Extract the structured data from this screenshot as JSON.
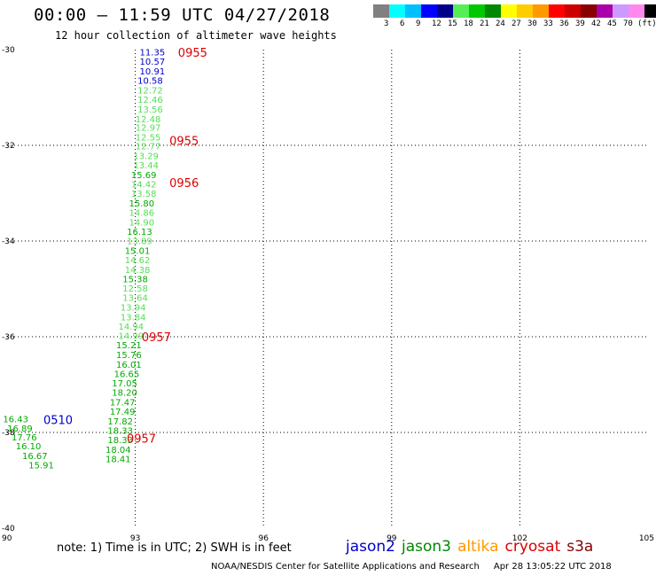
{
  "header": {
    "title": "00:00 – 11:59 UTC 04/27/2018",
    "subtitle": "12 hour collection of altimeter wave heights"
  },
  "legend": {
    "colors": [
      "#808080",
      "#00ffff",
      "#00bfff",
      "#0000ff",
      "#00008b",
      "#55ee55",
      "#00c800",
      "#008800",
      "#ffff00",
      "#ffcc00",
      "#ff9900",
      "#ff0000",
      "#cc0000",
      "#880000",
      "#aa00aa",
      "#cc99ff",
      "#ff88ee",
      "#000000"
    ],
    "labels": [
      "3",
      "6",
      "9",
      "12",
      "15",
      "18",
      "21",
      "24",
      "27",
      "30",
      "33",
      "36",
      "39",
      "42",
      "45",
      "70"
    ],
    "unit": "(ft)"
  },
  "axes": {
    "x_ticks": [
      "90",
      "93",
      "96",
      "99",
      "102",
      "105"
    ],
    "y_ticks": [
      "-30",
      "-32",
      "-34",
      "-36",
      "-38",
      "-40"
    ],
    "lon_range": [
      90,
      105
    ],
    "lat_range": [
      -40,
      -30
    ]
  },
  "chart_data": {
    "type": "scatter",
    "points": [
      {
        "lon": 93.4,
        "lat": -30.05,
        "label": "11.35",
        "color": "#0000cc"
      },
      {
        "lon": 93.4,
        "lat": -30.24,
        "label": "10.57",
        "color": "#0000cc"
      },
      {
        "lon": 93.4,
        "lat": -30.44,
        "label": "10.91",
        "color": "#0000cc"
      },
      {
        "lon": 93.35,
        "lat": -30.64,
        "label": "10.58",
        "color": "#0000cc"
      },
      {
        "lon": 93.35,
        "lat": -30.84,
        "label": "12.72",
        "color": "#55dd55"
      },
      {
        "lon": 93.35,
        "lat": -31.04,
        "label": "12.46",
        "color": "#55dd55"
      },
      {
        "lon": 93.35,
        "lat": -31.24,
        "label": "13.56",
        "color": "#55dd55"
      },
      {
        "lon": 93.3,
        "lat": -31.44,
        "label": "12.48",
        "color": "#55dd55"
      },
      {
        "lon": 93.3,
        "lat": -31.62,
        "label": "12.97",
        "color": "#55dd55"
      },
      {
        "lon": 93.3,
        "lat": -31.82,
        "label": "12.55",
        "color": "#55dd55"
      },
      {
        "lon": 93.3,
        "lat": -32.01,
        "label": "12.77",
        "color": "#55dd55"
      },
      {
        "lon": 93.25,
        "lat": -32.21,
        "label": "13.29",
        "color": "#55dd55"
      },
      {
        "lon": 93.25,
        "lat": -32.41,
        "label": "13.44",
        "color": "#55dd55"
      },
      {
        "lon": 93.2,
        "lat": -32.61,
        "label": "15.69",
        "color": "#00aa00"
      },
      {
        "lon": 93.2,
        "lat": -32.81,
        "label": "14.42",
        "color": "#55dd55"
      },
      {
        "lon": 93.2,
        "lat": -33.0,
        "label": "13.58",
        "color": "#55dd55"
      },
      {
        "lon": 93.15,
        "lat": -33.2,
        "label": "15.80",
        "color": "#00aa00"
      },
      {
        "lon": 93.15,
        "lat": -33.4,
        "label": "14.86",
        "color": "#55dd55"
      },
      {
        "lon": 93.15,
        "lat": -33.6,
        "label": "14.90",
        "color": "#55dd55"
      },
      {
        "lon": 93.1,
        "lat": -33.8,
        "label": "16.13",
        "color": "#00aa00"
      },
      {
        "lon": 93.1,
        "lat": -33.99,
        "label": "13.89",
        "color": "#55dd55"
      },
      {
        "lon": 93.05,
        "lat": -34.19,
        "label": "15.01",
        "color": "#00aa00"
      },
      {
        "lon": 93.05,
        "lat": -34.39,
        "label": "14.62",
        "color": "#55dd55"
      },
      {
        "lon": 93.05,
        "lat": -34.59,
        "label": "14.38",
        "color": "#55dd55"
      },
      {
        "lon": 93.0,
        "lat": -34.79,
        "label": "15.38",
        "color": "#00aa00"
      },
      {
        "lon": 93.0,
        "lat": -34.98,
        "label": "12.58",
        "color": "#55dd55"
      },
      {
        "lon": 93.0,
        "lat": -35.18,
        "label": "13.64",
        "color": "#55dd55"
      },
      {
        "lon": 92.95,
        "lat": -35.38,
        "label": "13.94",
        "color": "#55dd55"
      },
      {
        "lon": 92.95,
        "lat": -35.58,
        "label": "13.84",
        "color": "#55dd55"
      },
      {
        "lon": 92.9,
        "lat": -35.78,
        "label": "14.94",
        "color": "#55dd55"
      },
      {
        "lon": 92.9,
        "lat": -35.97,
        "label": "14.99",
        "color": "#55dd55"
      },
      {
        "lon": 92.85,
        "lat": -36.17,
        "label": "15.21",
        "color": "#00aa00"
      },
      {
        "lon": 92.85,
        "lat": -36.37,
        "label": "15.76",
        "color": "#00aa00"
      },
      {
        "lon": 92.85,
        "lat": -36.57,
        "label": "16.01",
        "color": "#00aa00"
      },
      {
        "lon": 92.8,
        "lat": -36.77,
        "label": "16.65",
        "color": "#00aa00"
      },
      {
        "lon": 92.75,
        "lat": -36.96,
        "label": "17.05",
        "color": "#00aa00"
      },
      {
        "lon": 92.75,
        "lat": -37.16,
        "label": "18.20",
        "color": "#00aa00"
      },
      {
        "lon": 92.7,
        "lat": -37.36,
        "label": "17.47",
        "color": "#00aa00"
      },
      {
        "lon": 92.7,
        "lat": -37.56,
        "label": "17.49",
        "color": "#00aa00"
      },
      {
        "lon": 92.65,
        "lat": -37.76,
        "label": "17.82",
        "color": "#00aa00"
      },
      {
        "lon": 92.65,
        "lat": -37.95,
        "label": "18.33",
        "color": "#00aa00"
      },
      {
        "lon": 92.65,
        "lat": -38.15,
        "label": "18.33",
        "color": "#00aa00"
      },
      {
        "lon": 92.6,
        "lat": -38.35,
        "label": "18.04",
        "color": "#00aa00"
      },
      {
        "lon": 92.6,
        "lat": -38.55,
        "label": "18.41",
        "color": "#00aa00"
      },
      {
        "lon": 90.2,
        "lat": -37.71,
        "label": "16.43",
        "color": "#00aa00"
      },
      {
        "lon": 90.3,
        "lat": -37.91,
        "label": "16.89",
        "color": "#00aa00"
      },
      {
        "lon": 90.4,
        "lat": -38.09,
        "label": "17.76",
        "color": "#00aa00"
      },
      {
        "lon": 90.5,
        "lat": -38.28,
        "label": "16.10",
        "color": "#00aa00"
      },
      {
        "lon": 90.65,
        "lat": -38.48,
        "label": "16.67",
        "color": "#00aa00"
      },
      {
        "lon": 90.8,
        "lat": -38.68,
        "label": "15.91",
        "color": "#00aa00"
      }
    ],
    "times": [
      {
        "lon": 94.0,
        "lat": -30.06,
        "label": "0955",
        "color": "#dd0000"
      },
      {
        "lon": 93.8,
        "lat": -31.9,
        "label": "0955",
        "color": "#dd0000"
      },
      {
        "lon": 93.8,
        "lat": -32.78,
        "label": "0956",
        "color": "#dd0000"
      },
      {
        "lon": 93.15,
        "lat": -36.0,
        "label": "0957",
        "color": "#dd0000"
      },
      {
        "lon": 92.8,
        "lat": -38.12,
        "label": "0957",
        "color": "#dd0000"
      },
      {
        "lon": 90.85,
        "lat": -37.73,
        "label": "0510",
        "color": "#0000cc"
      }
    ]
  },
  "note": "note:  1) Time is in UTC;  2) SWH is in feet",
  "satellites": [
    {
      "name": "jason2",
      "color": "#0000cc"
    },
    {
      "name": "jason3",
      "color": "#008800"
    },
    {
      "name": "altika",
      "color": "#ff9900"
    },
    {
      "name": "cryosat",
      "color": "#dd0000"
    },
    {
      "name": "s3a",
      "color": "#880000"
    }
  ],
  "footer": {
    "credit": "NOAA/NESDIS Center for Satellite Applications and Research",
    "timestamp": "Apr 28 13:05:22 UTC 2018"
  }
}
